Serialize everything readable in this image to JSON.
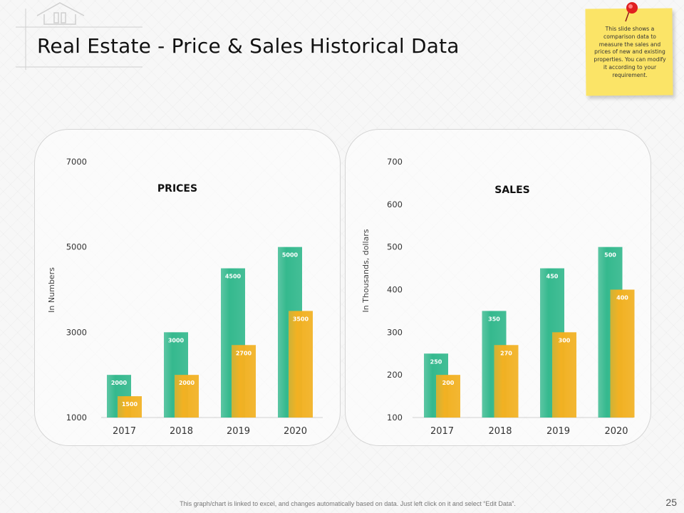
{
  "slide": {
    "title": "Real Estate - Price & Sales Historical Data",
    "page_number": "25",
    "footer": "This graph/chart is linked to excel, and changes automatically based on data. Just left click on it and select “Edit Data”.",
    "note": "This slide shows a comparison data to measure the sales and prices of new and existing properties. You can modify it according to your requirement."
  },
  "colors": {
    "teal": "#35b98e",
    "orange": "#f2b122",
    "note_yellow": "#fbe467",
    "pin_red": "#e02020"
  },
  "chart_data": [
    {
      "type": "bar",
      "title": "PRICES",
      "ylabel": "In Numbers",
      "categories": [
        "2017",
        "2018",
        "2019",
        "2020"
      ],
      "series": [
        {
          "values": [
            2000,
            3000,
            4500,
            5000
          ],
          "color": "#35b98e"
        },
        {
          "values": [
            1500,
            2000,
            2700,
            3500
          ],
          "color": "#f2b122"
        }
      ],
      "yticks": [
        "1000",
        "3000",
        "5000",
        "7000"
      ],
      "ylim": [
        1000,
        7000
      ],
      "grid": false
    },
    {
      "type": "bar",
      "title": "SALES",
      "ylabel": "In Thousands, dollars",
      "categories": [
        "2017",
        "2018",
        "2019",
        "2020"
      ],
      "series": [
        {
          "values": [
            250,
            350,
            450,
            500
          ],
          "color": "#35b98e"
        },
        {
          "values": [
            200,
            270,
            300,
            400
          ],
          "color": "#f2b122"
        }
      ],
      "yticks": [
        "100",
        "200",
        "300",
        "400",
        "500",
        "600",
        "700"
      ],
      "ylim": [
        100,
        700
      ],
      "grid": false
    }
  ]
}
